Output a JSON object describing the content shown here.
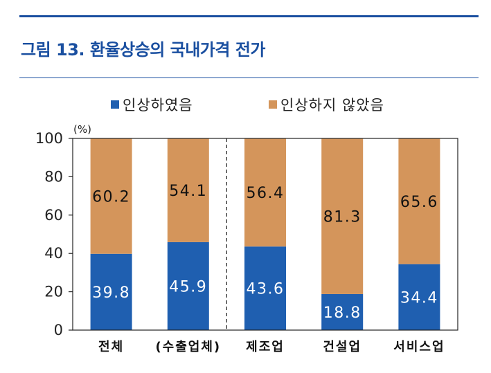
{
  "figure_title": "그림 13. 환율상승의 국내가격 전가",
  "chart_data": {
    "type": "bar",
    "stacked": true,
    "unit_label": "(%)",
    "categories": [
      "전체",
      "(수출업체)",
      "제조업",
      "건설업",
      "서비스업"
    ],
    "series": [
      {
        "name": "인상하였음",
        "values": [
          39.8,
          45.9,
          43.6,
          18.8,
          34.4
        ],
        "color": "#1f5fb0"
      },
      {
        "name": "인상하지 않았음",
        "values": [
          60.2,
          54.1,
          56.4,
          81.3,
          65.6
        ],
        "color": "#d4955b"
      }
    ],
    "ylim": [
      0,
      100
    ],
    "yticks": [
      0,
      20,
      40,
      60,
      80,
      100
    ],
    "legend_position": "top",
    "grid": false,
    "divider_after_category": "(수출업체)"
  }
}
